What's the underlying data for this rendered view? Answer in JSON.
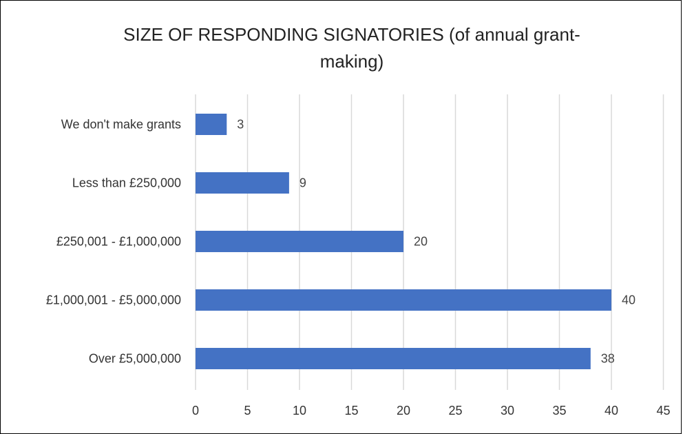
{
  "chart_data": {
    "type": "bar",
    "orientation": "horizontal",
    "title": "SIZE OF RESPONDING SIGNATORIES (of annual grant-making)",
    "categories": [
      "We don't make grants",
      "Less than £250,000",
      "£250,001 - £1,000,000",
      "£1,000,001 - £5,000,000",
      "Over £5,000,000"
    ],
    "values": [
      3,
      9,
      20,
      40,
      38
    ],
    "data_labels": [
      "3",
      "9",
      "20",
      "40",
      "38"
    ],
    "xlim": [
      0,
      45
    ],
    "x_ticks": [
      "0",
      "5",
      "10",
      "15",
      "20",
      "25",
      "30",
      "35",
      "40",
      "45"
    ],
    "x_tick_values": [
      0,
      5,
      10,
      15,
      20,
      25,
      30,
      35,
      40,
      45
    ],
    "grid": "vertical",
    "bar_color": "#4472C4",
    "grid_color": "#d9d9d9"
  }
}
